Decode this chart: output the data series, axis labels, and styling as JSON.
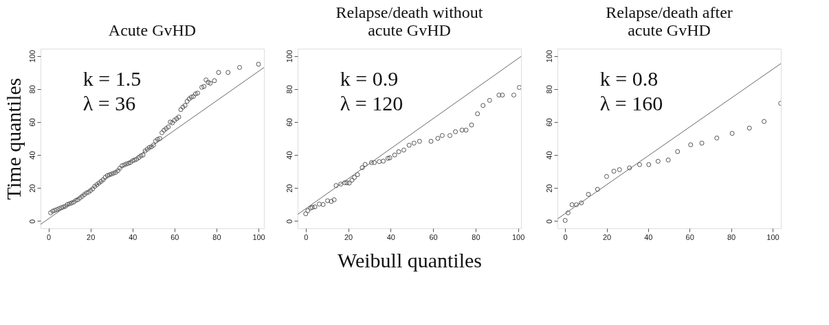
{
  "chart_data": [
    {
      "type": "scatter",
      "title": "Acute GvHD",
      "ylabel": "Time quantiles",
      "xlim": [
        -3.8,
        102.6
      ],
      "ylim": [
        -4.4,
        104.4
      ],
      "xticks": [
        0,
        20,
        40,
        60,
        80,
        100
      ],
      "yticks": [
        0,
        20,
        40,
        60,
        80,
        100
      ],
      "grid": false,
      "annotations": [
        "k = 1.5",
        "λ = 36"
      ],
      "series": [
        {
          "type": "scatter",
          "marker": "circle",
          "color": "#555555",
          "x": [
            1,
            2,
            3,
            4,
            5,
            6,
            7,
            8,
            9,
            10,
            11,
            12,
            13,
            14,
            15,
            16,
            17,
            18,
            19,
            20,
            21,
            22,
            23,
            24,
            25,
            26,
            27,
            28,
            29,
            30,
            31,
            32,
            33,
            34,
            35,
            36,
            37,
            38,
            39,
            40,
            41,
            42,
            43,
            44,
            45,
            46,
            47,
            48,
            49,
            50,
            51,
            52,
            53,
            54,
            55,
            56,
            57,
            58,
            59,
            60,
            61,
            62,
            63,
            64,
            65,
            66,
            67,
            68,
            69,
            70,
            71,
            73,
            74,
            75,
            76,
            77,
            79,
            81,
            85.5,
            91,
            100
          ],
          "values": [
            5,
            6,
            6.5,
            7,
            7.5,
            8,
            8.5,
            9,
            10,
            10.5,
            11,
            11.5,
            12.5,
            13,
            14,
            15,
            16,
            17,
            17.5,
            18.5,
            19.5,
            21,
            22,
            23,
            24,
            25,
            26.5,
            27.5,
            28,
            28.5,
            29,
            29.5,
            30.5,
            32,
            33.5,
            34,
            34.5,
            35,
            35.5,
            36.5,
            37,
            37.5,
            38.5,
            39.5,
            40,
            42.5,
            43.5,
            44.5,
            45,
            46,
            48.5,
            49.5,
            50,
            53.5,
            55,
            56,
            57,
            60,
            59.5,
            61,
            62,
            63,
            67.5,
            69,
            70,
            72.5,
            74,
            75,
            75.5,
            77,
            77.5,
            81,
            81.5,
            85.5,
            84,
            83.5,
            85,
            90,
            90,
            93,
            95
          ]
        },
        {
          "type": "line",
          "color": "#666666",
          "x": [
            -3.8,
            102.6
          ],
          "values": [
            -2,
            93
          ]
        }
      ]
    },
    {
      "type": "scatter",
      "title": "Relapse/death without\nacute GvHD",
      "xlabel": "Weibull quantiles",
      "xlim": [
        -3.8,
        101.4
      ],
      "ylim": [
        -4.4,
        104.4
      ],
      "xticks": [
        0,
        20,
        40,
        60,
        80,
        100
      ],
      "yticks": [
        0,
        20,
        40,
        60,
        80,
        100
      ],
      "grid": false,
      "annotations": [
        "k = 0.9",
        "λ = 120"
      ],
      "series": [
        {
          "type": "scatter",
          "marker": "circle",
          "color": "#555555",
          "x": [
            0,
            1,
            2.4,
            3.1,
            4.3,
            6.4,
            8.2,
            10.3,
            12,
            13.4,
            14.3,
            16.5,
            18.4,
            19.4,
            20.5,
            21.8,
            22.9,
            24.4,
            26.6,
            28,
            31,
            32.3,
            34.6,
            36.5,
            38.7,
            39.6,
            41.9,
            43.8,
            46.2,
            48.7,
            51,
            53.6,
            59,
            62.2,
            64.3,
            67.9,
            70.5,
            73.6,
            75.5,
            78.1,
            80.9,
            83.5,
            86.6,
            91,
            92.6,
            98,
            100.6
          ],
          "values": [
            4.4,
            6.3,
            7.9,
            8.3,
            8.6,
            10.3,
            10,
            12.3,
            11.9,
            12.9,
            21.5,
            22.4,
            23.2,
            23.2,
            23,
            24.8,
            26.4,
            28.1,
            32.3,
            34.3,
            35.4,
            35.4,
            36,
            36.3,
            38,
            38.3,
            40,
            42,
            43,
            45.9,
            47.2,
            48.3,
            48.3,
            50.1,
            51.8,
            51.8,
            54.1,
            55.1,
            55.1,
            58.2,
            65,
            70,
            73.1,
            76.3,
            76.3,
            76.3,
            80.9
          ]
        },
        {
          "type": "line",
          "color": "#666666",
          "x": [
            -3.8,
            101.4
          ],
          "values": [
            4,
            99.7
          ]
        }
      ]
    },
    {
      "type": "scatter",
      "title": "Relapse/death after\nacute GvHD",
      "xlim": [
        -3.7,
        104
      ],
      "ylim": [
        -4.4,
        104.4
      ],
      "xticks": [
        0,
        20,
        40,
        60,
        80,
        100
      ],
      "yticks": [
        0,
        20,
        40,
        60,
        80,
        100
      ],
      "grid": false,
      "annotations": [
        "k = 0.8",
        "λ = 160"
      ],
      "series": [
        {
          "type": "scatter",
          "marker": "circle",
          "color": "#555555",
          "x": [
            0,
            1.4,
            3.3,
            5.4,
            7.8,
            11.2,
            15.6,
            20,
            23.5,
            26.2,
            31,
            35.9,
            40.3,
            44.8,
            49.7,
            54.2,
            60.5,
            65.9,
            73.1,
            80.5,
            88.8,
            95.9,
            103.9
          ],
          "values": [
            0.4,
            5,
            9.9,
            9.9,
            11,
            16.2,
            19.2,
            27,
            30.2,
            31.1,
            32.2,
            34.2,
            34.2,
            36.2,
            37,
            42.1,
            46.2,
            47.2,
            50.3,
            53.1,
            56.3,
            60.3,
            71.3
          ]
        },
        {
          "type": "line",
          "color": "#666666",
          "x": [
            -3.7,
            104
          ],
          "values": [
            1.3,
            95.4
          ]
        }
      ]
    }
  ]
}
